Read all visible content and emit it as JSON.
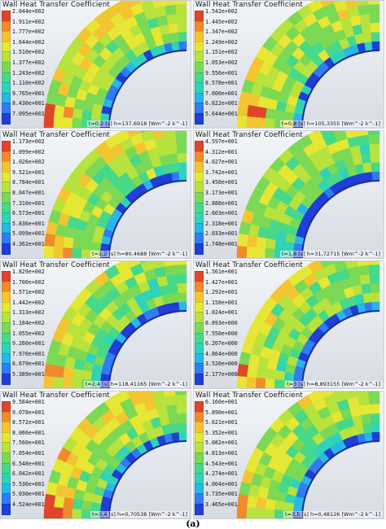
{
  "colors": {
    "scale": [
      "#1f3fd6",
      "#2f7df0",
      "#28b7e7",
      "#2fd3b8",
      "#48d88a",
      "#7cd955",
      "#b8e23d",
      "#e6e634",
      "#f2c531",
      "#f08b2c",
      "#e0452a"
    ]
  },
  "panels": [
    {
      "title": "Wall Heat Transfer Coefficient",
      "ticks": [
        "2.044e+002",
        "1.911e+002",
        "1.777e+002",
        "1.644e+002",
        "1.510e+002",
        "1.377e+002",
        "1.243e+002",
        "1.110e+002",
        "9.765e+001",
        "8.430e+001",
        "7.095e+001"
      ],
      "caption": "t=0,2  [s]  h=137,6918  [Wm^-2 k^-1]"
    },
    {
      "title": "Wall Heat Transfer Coefficient",
      "ticks": [
        "1.542e+002",
        "1.445e+002",
        "1.347e+002",
        "1.249e+002",
        "1.151e+002",
        "1.053e+002",
        "9.556e+001",
        "8.578e+001",
        "7.600e+001",
        "6.622e+001",
        "5.644e+001"
      ],
      "caption": "t=0,8  [s]  h=105,3355  [Wm^-2 k^-1]"
    },
    {
      "title": "Wall Heat Transfer Coefficient",
      "ticks": [
        "1.173e+002",
        "1.099e+002",
        "1.026e+002",
        "9.521e+001",
        "8.784e+001",
        "8.047e+001",
        "7.310e+001",
        "6.573e+001",
        "5.836e+001",
        "5.099e+001",
        "4.362e+001"
      ],
      "caption": "t=1,2  [s]  h=80,4688  [Wm^-2 k^-1]"
    },
    {
      "title": "Wall Heat Transfer Coefficient",
      "ticks": [
        "4.597e+001",
        "4.312e+001",
        "4.027e+001",
        "3.742e+001",
        "3.458e+001",
        "3.173e+001",
        "2.888e+001",
        "2.603e+001",
        "2.318e+001",
        "2.033e+001",
        "1.748e+001"
      ],
      "caption": "t=1,8  [s]  h=31,72715  [Wm^-2 k^-1]"
    },
    {
      "title": "Wall Heat Transfer Coefficient",
      "ticks": [
        "1.829e+002",
        "1.700e+002",
        "1.571e+002",
        "1.442e+002",
        "1.313e+002",
        "1.184e+002",
        "1.055e+002",
        "9.260e+001",
        "7.970e+001",
        "6.679e+001",
        "5.389e+001"
      ],
      "caption": "t=2,4  [s]  h=118,41165  [Wm^-2 k^-1]"
    },
    {
      "title": "Wall Heat Transfer Coefficient",
      "ticks": [
        "1.561e+001",
        "1.427e+001",
        "1.292e+001",
        "1.158e+001",
        "1.024e+001",
        "8.893e+000",
        "7.550e+000",
        "6.207e+000",
        "4.864e+000",
        "3.520e+000",
        "2.177e+000"
      ],
      "caption": "t=3  [s]  h=8,893155  [Wm^-2 k^-1]"
    },
    {
      "title": "Wall Heat Transfer Coefficient",
      "ticks": [
        "9.584e+001",
        "9.078e+001",
        "8.572e+001",
        "8.066e+001",
        "7.560e+001",
        "7.054e+001",
        "6.548e+001",
        "6.042e+001",
        "5.536e+001",
        "5.030e+001",
        "4.524e+001"
      ],
      "caption": "t=3,4  [s]  h=0,70538  [Wm^-2 k^-1]"
    },
    {
      "title": "Wall Heat Transfer Coefficient",
      "ticks": [
        "6.160e+001",
        "5.890e+001",
        "5.621e+001",
        "5.352e+001",
        "5.082e+001",
        "4.813e+001",
        "4.543e+001",
        "4.274e+001",
        "4.004e+001",
        "3.735e+001",
        "3.465e+001"
      ],
      "caption": "t=3,5  [s]  h=0,48126  [Wm^-2 k^-1]"
    }
  ],
  "figure_label": "(a)"
}
